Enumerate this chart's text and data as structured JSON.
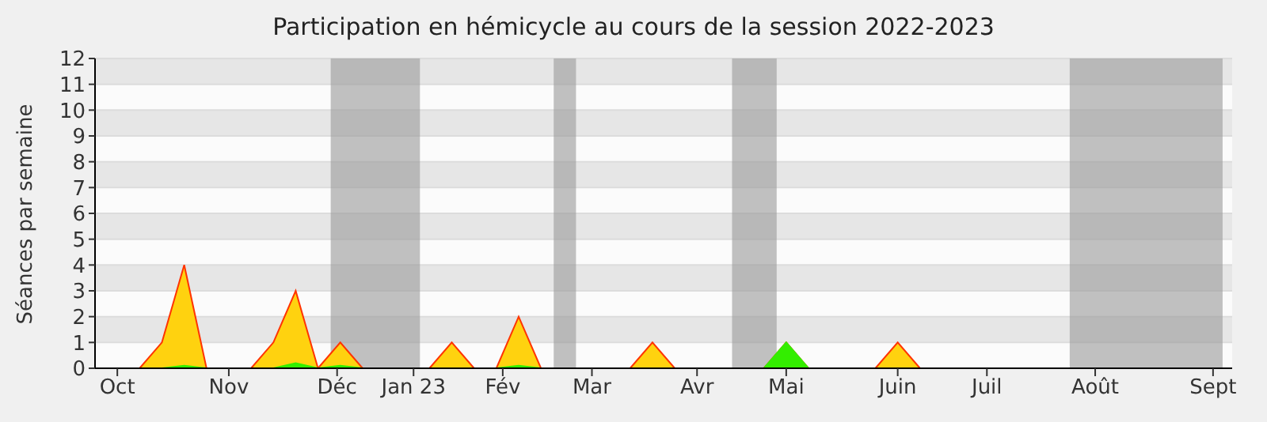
{
  "chart_data": {
    "type": "area",
    "title": "Participation en hémicycle au cours de la session 2022-2023",
    "ylabel": "Séances par semaine",
    "x": [
      "2022-09-26",
      "2022-10-03",
      "2022-10-10",
      "2022-10-17",
      "2022-10-24",
      "2022-10-31",
      "2022-11-07",
      "2022-11-14",
      "2022-11-21",
      "2022-11-28",
      "2022-12-05",
      "2022-12-12",
      "2022-12-19",
      "2022-12-26",
      "2023-01-02",
      "2023-01-09",
      "2023-01-16",
      "2023-01-23",
      "2023-01-30",
      "2023-02-06",
      "2023-02-13",
      "2023-02-20",
      "2023-02-27",
      "2023-03-06",
      "2023-03-13",
      "2023-03-20",
      "2023-03-27",
      "2023-04-03",
      "2023-04-10",
      "2023-04-17",
      "2023-04-24",
      "2023-05-01",
      "2023-05-08",
      "2023-05-15",
      "2023-05-22",
      "2023-05-29",
      "2023-06-05",
      "2023-06-12",
      "2023-06-19",
      "2023-06-26",
      "2023-07-03",
      "2023-07-10",
      "2023-07-17",
      "2023-07-24",
      "2023-07-31",
      "2023-08-07",
      "2023-08-14",
      "2023-08-21",
      "2023-08-28",
      "2023-09-04",
      "2023-09-11",
      "2023-09-18"
    ],
    "series": [
      {
        "color": "#ffd20f",
        "values": [
          0,
          0,
          0,
          1,
          4,
          0,
          0,
          0,
          1,
          3,
          0,
          1,
          0,
          0,
          0,
          0,
          1,
          0,
          0,
          2,
          0,
          0,
          0,
          0,
          0,
          1,
          0,
          0,
          0,
          0,
          0,
          1,
          0,
          0,
          0,
          0,
          1,
          0,
          0,
          0,
          0,
          0,
          0,
          0,
          0,
          0,
          0,
          0,
          0,
          0,
          0,
          0
        ]
      },
      {
        "color": "#33ee00",
        "values": [
          0,
          0,
          0,
          0,
          0.1,
          0,
          0,
          0,
          0,
          0.2,
          0,
          0.1,
          0,
          0,
          0,
          0,
          0,
          0,
          0,
          0.1,
          0,
          0,
          0,
          0,
          0,
          0,
          0,
          0,
          0,
          0,
          0,
          1,
          0,
          0,
          0,
          0,
          0,
          0,
          0,
          0,
          0,
          0,
          0,
          0,
          0,
          0,
          0,
          0,
          0,
          0,
          0,
          0
        ]
      }
    ],
    "xlim": [
      "2022-09-26",
      "2023-09-18"
    ],
    "xticks": [
      {
        "value": "2022-10-03",
        "label": "Oct"
      },
      {
        "value": "2022-11-07",
        "label": "Nov"
      },
      {
        "value": "2022-12-11",
        "label": "Déc"
      },
      {
        "value": "2023-01-04",
        "label": "Jan 23"
      },
      {
        "value": "2023-02-01",
        "label": "Fév"
      },
      {
        "value": "2023-03-01",
        "label": "Mar"
      },
      {
        "value": "2023-04-03",
        "label": "Avr"
      },
      {
        "value": "2023-05-01",
        "label": "Mai"
      },
      {
        "value": "2023-06-05",
        "label": "Juin"
      },
      {
        "value": "2023-07-03",
        "label": "Juil"
      },
      {
        "value": "2023-08-06",
        "label": "Août"
      },
      {
        "value": "2023-09-12",
        "label": "Sept"
      }
    ],
    "ylim": [
      0,
      12
    ],
    "yticks": [
      0,
      1,
      2,
      3,
      4,
      5,
      6,
      7,
      8,
      9,
      10,
      11,
      12
    ],
    "grid": "y",
    "legend": false,
    "bands": [
      {
        "axis": "x",
        "from": "2022-12-09",
        "to": "2023-01-06",
        "color": "#999999"
      },
      {
        "axis": "x",
        "from": "2023-02-17",
        "to": "2023-02-24",
        "color": "#999999"
      },
      {
        "axis": "x",
        "from": "2023-04-14",
        "to": "2023-04-28",
        "color": "#999999"
      },
      {
        "axis": "x",
        "from": "2023-07-29",
        "to": "2023-09-15",
        "color": "#999999"
      }
    ]
  }
}
